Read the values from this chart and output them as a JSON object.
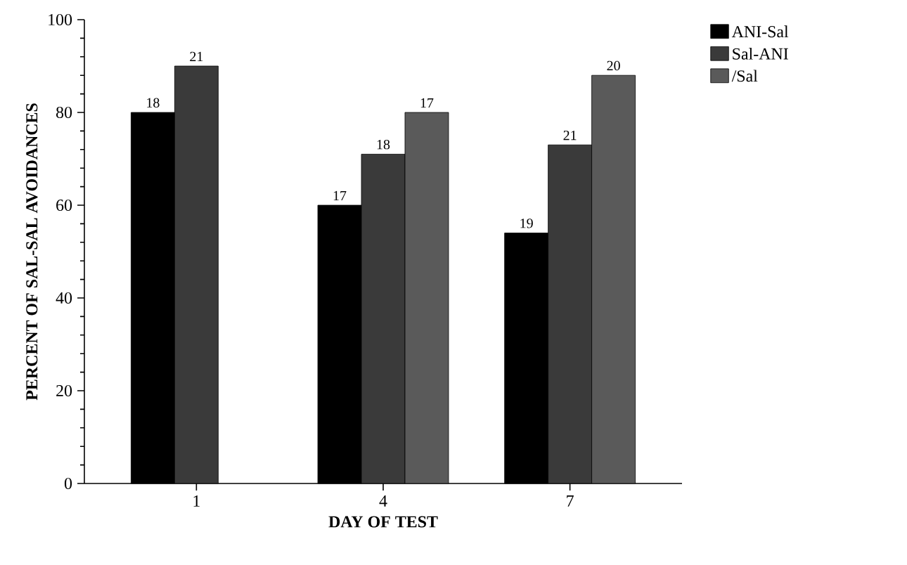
{
  "chart_data": {
    "type": "bar",
    "xlabel": "DAY OF TEST",
    "ylabel": "PERCENT OF SAL-SAL AVOIDANCES",
    "categories": [
      "1",
      "4",
      "7"
    ],
    "series": [
      {
        "name": "ANI-Sal",
        "color": "#000000",
        "values": [
          80,
          60,
          54
        ]
      },
      {
        "name": "Sal-ANI",
        "color": "#3a3a3a",
        "values": [
          90,
          71,
          73
        ]
      },
      {
        "name": "/Sal",
        "color": "#5a5a5a",
        "values": [
          null,
          80,
          88
        ]
      }
    ],
    "annotations": [
      "18",
      "21",
      "17",
      "18",
      "17",
      "19",
      "21",
      "20"
    ],
    "ylim": [
      0,
      100
    ],
    "yticks": [
      0,
      20,
      40,
      60,
      80,
      100
    ],
    "legend": "top right",
    "grid": false
  }
}
